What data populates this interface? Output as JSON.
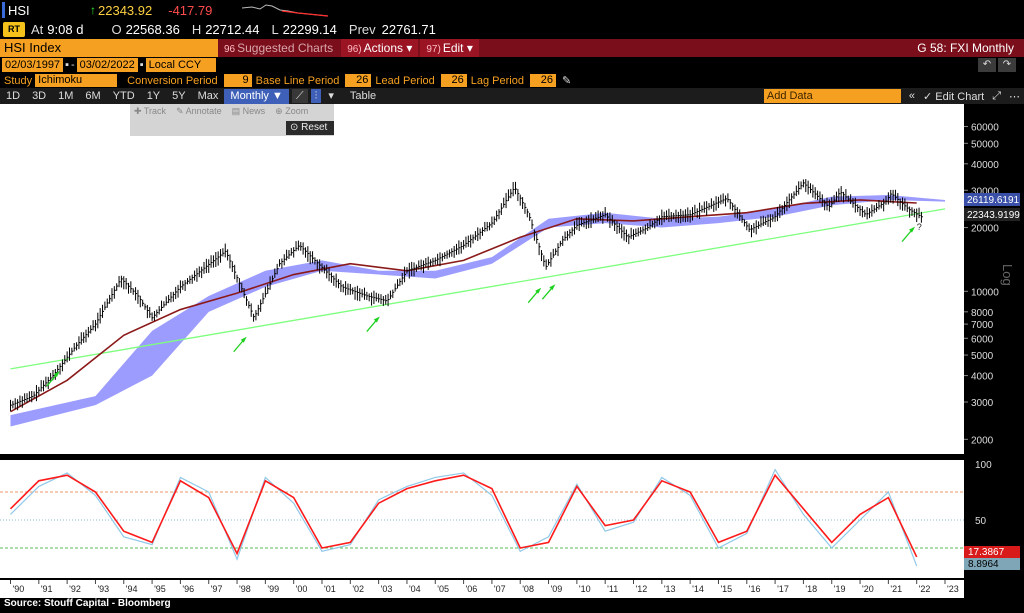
{
  "header": {
    "ticker": "HSI",
    "last": "22343.92",
    "change": "-417.79",
    "time_label": "At",
    "time": "9:08 d",
    "open_label": "O",
    "open": "22568.36",
    "high_label": "H",
    "high": "22712.44",
    "low_label": "L",
    "low": "22299.14",
    "prev_label": "Prev",
    "prev": "22761.71"
  },
  "toolbar": {
    "security": "HSI Index",
    "suggested_num": "96",
    "suggested": "Suggested Charts",
    "actions_num": "96)",
    "actions": "Actions",
    "edit_num": "97)",
    "edit": "Edit",
    "right_title": "G 58: FXI Monthly"
  },
  "range": {
    "start": "02/03/1997",
    "end": "03/02/2022",
    "currency": "Local CCY"
  },
  "study": {
    "label": "Study",
    "name": "Ichimoku",
    "conversion_label": "Conversion Period",
    "conversion": "9",
    "baseline_label": "Base Line Period",
    "baseline": "26",
    "lead_label": "Lead Period",
    "lead": "26",
    "lag_label": "Lag Period",
    "lag": "26"
  },
  "period_buttons": [
    "1D",
    "3D",
    "1M",
    "6M",
    "YTD",
    "1Y",
    "5Y",
    "Max"
  ],
  "frequency": "Monthly",
  "table_label": "Table",
  "add_data_placeholder": "Add Data",
  "edit_chart_label": "Edit Chart",
  "popup": {
    "track": "Track",
    "annotate": "Annotate",
    "news": "News",
    "zoom": "Zoom",
    "reset": "Reset"
  },
  "source": "Source:  Stouff Capital - Bloomberg",
  "colors": {
    "accent_orange": "#f6a021",
    "toolbar_red": "#7a0e1a",
    "cloud": "#8b8bff",
    "ma_line": "#8b1a1a",
    "trend_line": "#7dff7d",
    "rsi_red": "#ff1a1a",
    "rsi_blue": "#8fc8e8"
  },
  "chart_data": [
    {
      "type": "line",
      "title": "",
      "scale": "log",
      "y_axis_label": "Log",
      "yticks": [
        2000,
        3000,
        4000,
        5000,
        6000,
        7000,
        8000,
        10000,
        20000,
        30000,
        40000,
        50000,
        60000
      ],
      "ytick_labels": [
        "2000",
        "3000",
        "4000",
        "5000",
        "6000",
        "7000",
        "8000",
        "10000",
        "20000",
        "30000",
        "40000",
        "50000",
        "60000"
      ],
      "price_labels": [
        "26119.6191",
        "22343.9199"
      ],
      "annotation": "?",
      "x_year_labels": [
        "'90",
        "'91",
        "'92",
        "'93",
        "'94",
        "'95",
        "'96",
        "'97",
        "'98",
        "'99",
        "'00",
        "'01",
        "'02",
        "'03",
        "'04",
        "'05",
        "'06",
        "'07",
        "'08",
        "'09",
        "'10",
        "'11",
        "'12",
        "'13",
        "'14",
        "'15",
        "'16",
        "'17",
        "'18",
        "'19",
        "'20",
        "'21",
        "'22",
        "'23"
      ],
      "series": [
        {
          "name": "HSI",
          "x": [
            1990.0,
            1990.8,
            1991.5,
            1992.3,
            1993.0,
            1993.9,
            1994.5,
            1995.0,
            1996.0,
            1997.6,
            1998.6,
            1999.5,
            2000.2,
            2001.7,
            2002.6,
            2003.3,
            2004.0,
            2005.0,
            2006.0,
            2007.0,
            2007.8,
            2008.3,
            2008.9,
            2009.5,
            2010.0,
            2011.0,
            2011.8,
            2012.5,
            2013.0,
            2014.0,
            2015.3,
            2016.1,
            2017.0,
            2018.0,
            2018.9,
            2019.3,
            2020.2,
            2020.9,
            2021.1,
            2021.7,
            2022.2
          ],
          "y": [
            2900,
            3200,
            4000,
            5500,
            7000,
            11500,
            9500,
            7500,
            10500,
            15500,
            7500,
            13500,
            16500,
            10500,
            9500,
            9000,
            12500,
            14000,
            16500,
            21000,
            31000,
            23000,
            13000,
            17500,
            20500,
            23000,
            18000,
            20000,
            22500,
            23000,
            27500,
            19500,
            22500,
            32500,
            25000,
            29500,
            23000,
            26500,
            29000,
            24500,
            22344
          ]
        },
        {
          "name": "Base line",
          "x": [
            1990,
            1992,
            1994,
            1996,
            1998,
            2000,
            2002,
            2004,
            2006,
            2008,
            2010,
            2012,
            2014,
            2016,
            2018,
            2020,
            2022
          ],
          "y": [
            2700,
            3800,
            6200,
            8200,
            9800,
            12000,
            13500,
            12500,
            14000,
            18000,
            22000,
            21500,
            22500,
            23500,
            26000,
            27000,
            26120
          ]
        },
        {
          "name": "Trend",
          "x": [
            1990,
            2023
          ],
          "y": [
            4300,
            24500
          ]
        },
        {
          "name": "Cloud",
          "x": [
            1990,
            1993,
            1995,
            1997,
            1999,
            2001,
            2003,
            2005,
            2007,
            2009,
            2011,
            2013,
            2015,
            2017,
            2019,
            2021,
            2023
          ],
          "y_top": [
            2600,
            3200,
            6500,
            9500,
            12500,
            14000,
            12500,
            12500,
            14500,
            22000,
            23500,
            22000,
            22500,
            24500,
            28000,
            28500,
            27000
          ],
          "y_bottom": [
            2300,
            2900,
            4000,
            8000,
            10500,
            12500,
            12000,
            11500,
            13500,
            20000,
            21000,
            20000,
            21000,
            22500,
            25500,
            27000,
            26500
          ]
        }
      ]
    },
    {
      "type": "line",
      "title": "",
      "ylim": [
        0,
        100
      ],
      "yticks": [
        50,
        100
      ],
      "ytick_labels": [
        "50",
        "100"
      ],
      "value_labels": [
        "17.3867",
        "8.8964"
      ],
      "reference_levels": [
        75,
        50,
        25
      ],
      "series": [
        {
          "name": "RSI",
          "x": [
            1990.0,
            1991.0,
            1992.0,
            1993.0,
            1994.0,
            1995.0,
            1996.0,
            1997.0,
            1998.0,
            1999.0,
            2000.0,
            2001.0,
            2002.0,
            2003.0,
            2004.0,
            2005.0,
            2006.0,
            2007.0,
            2008.0,
            2009.0,
            2010.0,
            2011.0,
            2012.0,
            2013.0,
            2014.0,
            2015.0,
            2016.0,
            2017.0,
            2018.0,
            2019.0,
            2020.0,
            2021.0,
            2022.0
          ],
          "y": [
            60,
            85,
            90,
            75,
            40,
            30,
            85,
            70,
            20,
            85,
            70,
            25,
            30,
            65,
            78,
            85,
            90,
            78,
            25,
            30,
            80,
            45,
            50,
            85,
            75,
            30,
            40,
            90,
            60,
            30,
            55,
            70,
            17
          ]
        },
        {
          "name": "Signal",
          "x": [
            1990.0,
            1991.0,
            1992.0,
            1993.0,
            1994.0,
            1995.0,
            1996.0,
            1997.0,
            1998.0,
            1999.0,
            2000.0,
            2001.0,
            2002.0,
            2003.0,
            2004.0,
            2005.0,
            2006.0,
            2007.0,
            2008.0,
            2009.0,
            2010.0,
            2011.0,
            2012.0,
            2013.0,
            2014.0,
            2015.0,
            2016.0,
            2017.0,
            2018.0,
            2019.0,
            2020.0,
            2021.0,
            2022.0
          ],
          "y": [
            55,
            80,
            92,
            72,
            35,
            28,
            88,
            75,
            15,
            88,
            65,
            22,
            28,
            68,
            80,
            88,
            92,
            72,
            22,
            35,
            82,
            40,
            48,
            88,
            72,
            25,
            38,
            95,
            55,
            25,
            50,
            75,
            9
          ]
        }
      ]
    }
  ]
}
